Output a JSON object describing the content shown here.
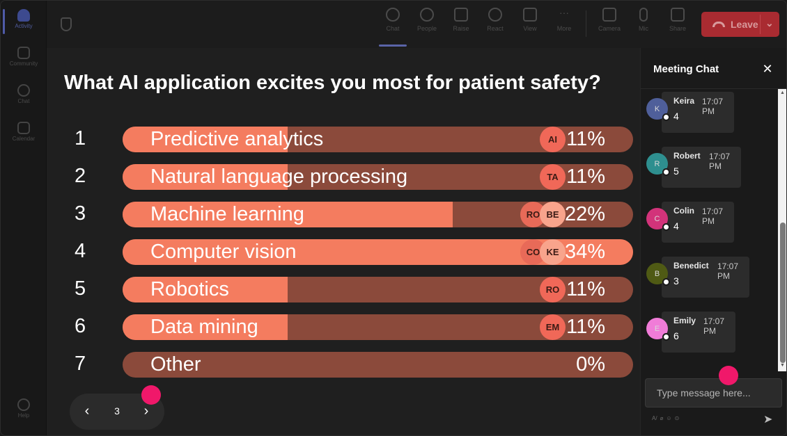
{
  "rail": {
    "items": [
      {
        "label": "Activity",
        "icon": "bell-icon"
      },
      {
        "label": "Community",
        "icon": "community-icon"
      },
      {
        "label": "Chat",
        "icon": "chat-icon"
      },
      {
        "label": "Calendar",
        "icon": "calendar-icon"
      },
      {
        "label": "Help",
        "icon": "help-icon"
      }
    ]
  },
  "toolbar": {
    "items": [
      {
        "label": "Chat",
        "icon": "chat-icon"
      },
      {
        "label": "People",
        "icon": "people-icon"
      },
      {
        "label": "Raise",
        "icon": "hand-icon"
      },
      {
        "label": "React",
        "icon": "smiley-icon"
      },
      {
        "label": "View",
        "icon": "grid-icon"
      },
      {
        "label": "More",
        "icon": "more-icon"
      },
      {
        "label": "Camera",
        "icon": "camera-icon"
      },
      {
        "label": "Mic",
        "icon": "mic-icon"
      },
      {
        "label": "Share",
        "icon": "share-icon"
      }
    ],
    "leave_label": "Leave"
  },
  "poll": {
    "question": "What AI application excites you most for patient safety?",
    "options": [
      {
        "num": "1",
        "label": "Predictive analytics",
        "percent_text": "11%",
        "fraction": 0.11,
        "voters": [
          "AI"
        ]
      },
      {
        "num": "2",
        "label": "Natural language processing",
        "percent_text": "11%",
        "fraction": 0.11,
        "voters": [
          "TA"
        ]
      },
      {
        "num": "3",
        "label": "Machine learning",
        "percent_text": "22%",
        "fraction": 0.22,
        "voters": [
          "RO",
          "BE"
        ]
      },
      {
        "num": "4",
        "label": "Computer vision",
        "percent_text": "34%",
        "fraction": 0.34,
        "voters": [
          "CO",
          "KE"
        ]
      },
      {
        "num": "5",
        "label": "Robotics",
        "percent_text": "11%",
        "fraction": 0.11,
        "voters": [
          "RO"
        ]
      },
      {
        "num": "6",
        "label": "Data mining",
        "percent_text": "11%",
        "fraction": 0.11,
        "voters": [
          "EM"
        ]
      },
      {
        "num": "7",
        "label": "Other",
        "percent_text": "0%",
        "fraction": 0,
        "voters": []
      }
    ],
    "colors": {
      "bar_fill": "#f47c5f",
      "bar_track": "#8b4a3b",
      "avatar": "#f06858"
    }
  },
  "pager": {
    "page": "3"
  },
  "chat": {
    "title": "Meeting Chat",
    "messages": [
      {
        "initial": "K",
        "name": "Keira",
        "time": "17:07 PM",
        "text": "4",
        "color": "#4f5f9a"
      },
      {
        "initial": "R",
        "name": "Robert",
        "time": "17:07 PM",
        "text": "5",
        "color": "#2e8f8f"
      },
      {
        "initial": "C",
        "name": "Colin",
        "time": "17:07 PM",
        "text": "4",
        "color": "#d2337a"
      },
      {
        "initial": "B",
        "name": "Benedict",
        "time": "17:07 PM",
        "text": "3",
        "color": "#4f5a14"
      },
      {
        "initial": "E",
        "name": "Emily",
        "time": "17:07 PM",
        "text": "6",
        "color": "#f07cd8"
      }
    ],
    "input_placeholder": "Type message here..."
  }
}
